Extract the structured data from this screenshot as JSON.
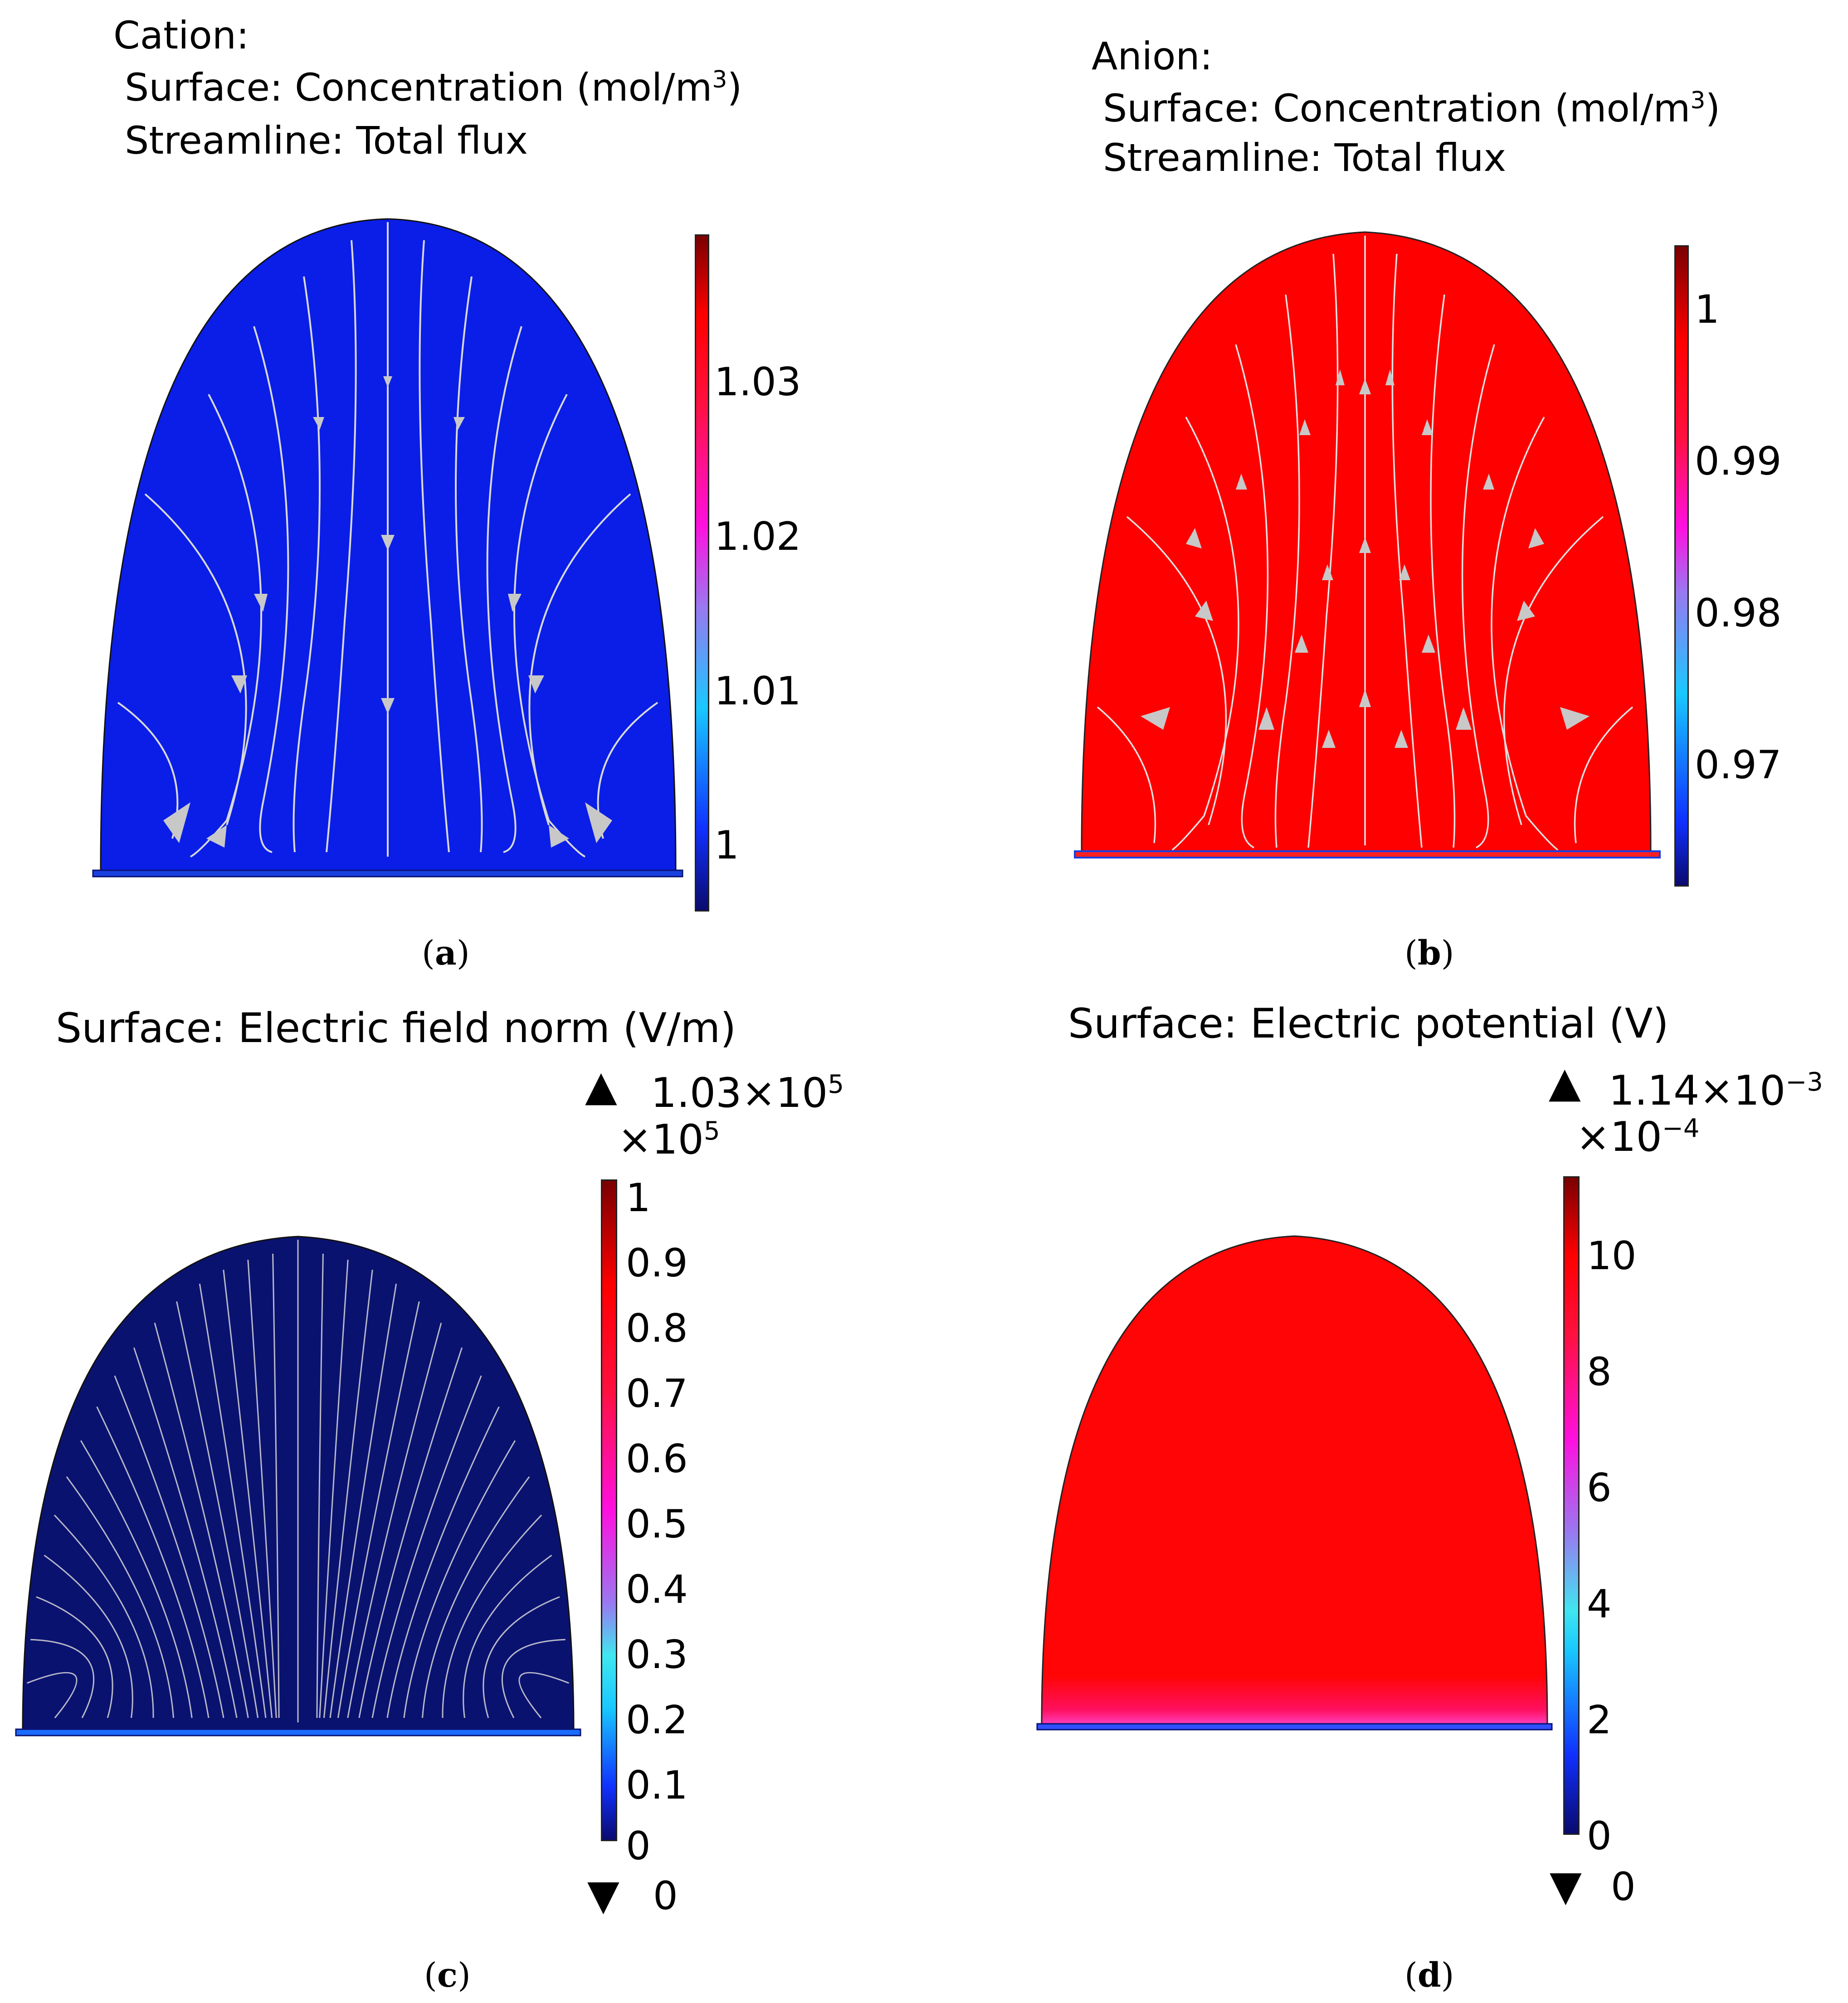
{
  "colors": {
    "cation_fill": "#0a1ee8",
    "anion_fill": "#ff0000",
    "efield_fill": "#0a1270",
    "potential_fill": "#ff0505",
    "streamline": "#d8d8d8",
    "arrow": "#c8c8c8"
  },
  "panels": {
    "a": {
      "caption_label": "a",
      "title_lines": [
        "Cation:",
        "Surface: Concentration (mol/m",
        "Streamline: Total flux"
      ],
      "superscript": "3",
      "colorbar_ticks": [
        "1.03",
        "1.02",
        "1.01",
        "1"
      ],
      "colormap": "rainbow-like (blue-cyan-pink-red)"
    },
    "b": {
      "caption_label": "b",
      "title_lines": [
        "Anion:",
        "Surface: Concentration (mol/m",
        "Streamline: Total flux"
      ],
      "superscript": "3",
      "colorbar_ticks": [
        "1",
        "0.99",
        "0.98",
        "0.97"
      ]
    },
    "c": {
      "caption_label": "c",
      "title": "Surface: Electric field norm (V/m)",
      "max_label": "1.03×10",
      "max_exp": "5",
      "scale_label": "×10",
      "scale_exp": "5",
      "colorbar_ticks": [
        "1",
        "0.9",
        "0.8",
        "0.7",
        "0.6",
        "0.5",
        "0.4",
        "0.3",
        "0.2",
        "0.1",
        "0"
      ],
      "min_label": "0"
    },
    "d": {
      "caption_label": "d",
      "title": "Surface: Electric potential (V)",
      "max_label": "1.14×10",
      "max_exp": "−3",
      "scale_label": "×10",
      "scale_exp": "−4",
      "colorbar_ticks": [
        "10",
        "8",
        "6",
        "4",
        "2",
        "0"
      ],
      "min_label": "0"
    }
  }
}
